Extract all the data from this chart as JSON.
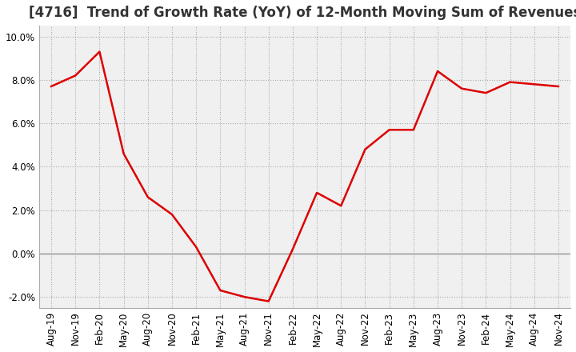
{
  "title": "[4716]  Trend of Growth Rate (YoY) of 12-Month Moving Sum of Revenues",
  "x_labels": [
    "Aug-19",
    "Nov-19",
    "Feb-20",
    "May-20",
    "Aug-20",
    "Nov-20",
    "Feb-21",
    "May-21",
    "Aug-21",
    "Nov-21",
    "Feb-22",
    "May-22",
    "Aug-22",
    "Nov-22",
    "Feb-23",
    "May-23",
    "Aug-23",
    "Nov-23",
    "Feb-24",
    "May-24",
    "Aug-24",
    "Nov-24"
  ],
  "ylim": [
    -0.025,
    0.105
  ],
  "yticks": [
    -0.02,
    0.0,
    0.02,
    0.04,
    0.06,
    0.08,
    0.1
  ],
  "data": [
    0.077,
    0.082,
    0.093,
    0.046,
    0.026,
    0.018,
    0.003,
    -0.017,
    -0.02,
    -0.022,
    0.002,
    0.028,
    0.022,
    0.048,
    0.057,
    0.057,
    0.084,
    0.076,
    0.074,
    0.079,
    0.078,
    0.077
  ],
  "line_color": "#dd0000",
  "background_color": "#ffffff",
  "plot_bg_color": "#f0f0f0",
  "grid_color": "#aaaaaa",
  "zero_line_color": "#888888",
  "title_fontsize": 12,
  "tick_fontsize": 8.5
}
